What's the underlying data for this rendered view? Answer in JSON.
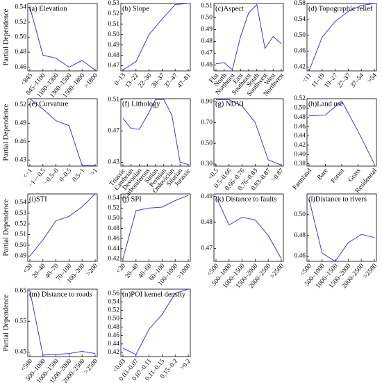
{
  "chart_data": [
    {
      "type": "line",
      "title": "(a) Elevation",
      "ylabel": "Partial Dependence",
      "categories": [
        "<845",
        "845–1100",
        "1100–1300",
        "1300–1500",
        "1500–1800",
        ">1800"
      ],
      "values": [
        0.54,
        0.476,
        0.472,
        0.46,
        0.469,
        0.456
      ],
      "color": "#3b3bd6",
      "ylim": [
        0.455,
        0.545
      ],
      "yticks": [
        0.46,
        0.48,
        {
          "value": 0.5,
          "label": "0.50"
        },
        0.52,
        0.54
      ]
    },
    {
      "type": "line",
      "title": "(b) Slope",
      "categories": [
        "0–13",
        "13–22",
        "22–30",
        "30–37",
        "37–47",
        "47–81"
      ],
      "values": [
        0.466,
        0.474,
        0.5,
        0.515,
        0.529,
        0.53
      ],
      "color": "#3b3bd6",
      "ylim": [
        0.465,
        0.53
      ],
      "yticks": [
        0.47,
        0.48,
        0.49,
        {
          "value": 0.5,
          "label": "0.50"
        },
        0.51,
        0.52,
        0.53
      ]
    },
    {
      "type": "line",
      "title": "(c)Aspect",
      "categories": [
        "Flat",
        "North",
        "Northeast",
        "East",
        "Southeast",
        "South",
        "Southwest",
        "West",
        "Northwest"
      ],
      "values": [
        0.461,
        0.462,
        0.456,
        0.484,
        0.504,
        0.511,
        0.474,
        0.484,
        0.478
      ],
      "color": "#3b3bd6",
      "ylim": [
        0.455,
        0.512
      ],
      "yticks": [
        0.46,
        0.47,
        0.48,
        0.49,
        {
          "value": 0.5,
          "label": "0.50"
        },
        0.51
      ]
    },
    {
      "type": "line",
      "title": "(d) Topographic relief",
      "categories": [
        "<11",
        "11–19",
        "19–27",
        "27–37",
        "37–54",
        ">54"
      ],
      "values": [
        0.41,
        0.495,
        0.535,
        0.56,
        0.575,
        0.58
      ],
      "color": "#3b3bd6",
      "ylim": [
        0.41,
        0.58
      ],
      "yticks": [
        0.42,
        0.46,
        {
          "value": 0.5,
          "label": "0.50"
        },
        0.54,
        0.58
      ]
    },
    {
      "type": "line",
      "title": "(e) Curvature",
      "ylabel": "Partial Dependence",
      "categories": [
        "<−1",
        "−1–−0.5",
        "−0.5–0",
        "0–0.5",
        "0.5–1",
        ">1"
      ],
      "values": [
        0.53,
        0.513,
        0.494,
        0.486,
        0.421,
        0.421
      ],
      "color": "#3b3bd6",
      "ylim": [
        0.42,
        0.53
      ],
      "yticks": [
        0.43,
        0.46,
        0.49,
        0.52
      ]
    },
    {
      "type": "line",
      "title": "(f) Lithology",
      "categories": [
        "Triassic",
        "Cambrian",
        "Devonian",
        "Carboniferous",
        "Sinian",
        "Permian",
        "Ordovician",
        "Silurian",
        "Jurassic"
      ],
      "values": [
        0.486,
        0.473,
        0.472,
        0.49,
        0.51,
        0.51,
        0.49,
        0.43,
        0.427
      ],
      "color": "#3b3bd6",
      "ylim": [
        0.425,
        0.511
      ],
      "yticks": [
        0.43,
        0.47,
        0.51
      ]
    },
    {
      "type": "line",
      "title": "(g) NDVI",
      "categories": [
        "<0.5",
        "0.5–0.66",
        "0.66–0.76",
        "0.76–0.83",
        "0.83–0.87",
        ">0.87"
      ],
      "values": [
        0.92,
        0.92,
        0.86,
        0.7,
        0.34,
        0.29
      ],
      "color": "#3b3bd6",
      "ylim": [
        0.28,
        0.93
      ],
      "yticks": [
        {
          "value": 0.3,
          "label": "0.30"
        },
        {
          "value": 0.5,
          "label": "0.50"
        },
        {
          "value": 0.7,
          "label": "0.70"
        },
        {
          "value": 0.9,
          "label": "0.90"
        }
      ]
    },
    {
      "type": "line",
      "title": "(h)Land use",
      "categories": [
        "Farmland",
        "Bare",
        "Forest",
        "Grass",
        "Residential"
      ],
      "values": [
        0.483,
        0.485,
        0.515,
        0.45,
        0.38
      ],
      "color": "#3b3bd6",
      "ylim": [
        0.375,
        0.52
      ],
      "yticks": [
        0.38,
        {
          "value": 0.4,
          "label": "0.40"
        },
        0.42,
        0.44,
        0.46,
        0.48,
        {
          "value": 0.5,
          "label": "0.50"
        },
        0.52
      ]
    },
    {
      "type": "line",
      "title": "(i)STI",
      "ylabel": "Partial Dependence",
      "categories": [
        "<20",
        "20–40",
        "40–70",
        "70–100",
        "100–200",
        ">200"
      ],
      "values": [
        0.49,
        0.505,
        0.523,
        0.527,
        0.536,
        0.548
      ],
      "color": "#3b3bd6",
      "ylim": [
        0.485,
        0.548
      ],
      "yticks": [
        0.49,
        {
          "value": 0.5,
          "label": "0.50"
        },
        0.51,
        0.52,
        0.53,
        0.54
      ]
    },
    {
      "type": "line",
      "title": "(j) SPI",
      "categories": [
        "<20",
        "20–40",
        "40–60",
        "60–100",
        "100–1000",
        ">1000"
      ],
      "values": [
        0.42,
        0.515,
        0.52,
        0.522,
        0.535,
        0.545
      ],
      "color": "#3b3bd6",
      "ylim": [
        0.415,
        0.548
      ],
      "yticks": [
        0.42,
        0.44,
        0.46,
        0.48,
        {
          "value": 0.5,
          "label": "0.50"
        },
        0.52,
        0.54
      ]
    },
    {
      "type": "line",
      "title": "(k) Distance to faults",
      "categories": [
        "<500",
        "500–1000",
        "1000–1500",
        "1500–2000",
        "2000–2500",
        ">2500"
      ],
      "values": [
        0.49,
        0.479,
        0.482,
        0.481,
        0.475,
        0.466
      ],
      "color": "#3b3bd6",
      "ylim": [
        0.465,
        0.491
      ],
      "yticks": [
        0.47,
        0.48,
        0.49
      ]
    },
    {
      "type": "line",
      "title": "(l)Distance to rivers",
      "categories": [
        "<500",
        "500–1000",
        "1000–1500",
        "1500–2000",
        "2000–2500",
        ">2500"
      ],
      "values": [
        0.515,
        0.463,
        0.455,
        0.473,
        0.481,
        0.478
      ],
      "color": "#3b3bd6",
      "ylim": [
        0.455,
        0.52
      ],
      "yticks": [
        0.46,
        0.48,
        {
          "value": 0.5,
          "label": "0.50"
        }
      ]
    },
    {
      "type": "line",
      "title": "(m) Distance to roads",
      "ylabel": "Partial Dependence",
      "categories": [
        "<500",
        "500–1000",
        "1000–1500",
        "1500–2000",
        "2000–2500",
        ">2500"
      ],
      "values": [
        0.65,
        0.44,
        0.442,
        0.445,
        0.452,
        0.445
      ],
      "color": "#3b3bd6",
      "ylim": [
        0.435,
        0.655
      ],
      "yticks": [
        0.45,
        0.55,
        0.65
      ]
    },
    {
      "type": "line",
      "title": "(n)POI kernel density",
      "categories": [
        "<0.03",
        "0.03–0.07",
        "0.07–0.11",
        "0.11–0.15",
        "0.15–0.2",
        ">0.2"
      ],
      "values": [
        0.43,
        0.415,
        0.475,
        0.51,
        0.56,
        0.57
      ],
      "color": "#3b3bd6",
      "ylim": [
        0.41,
        0.57
      ],
      "yticks": [
        0.42,
        0.44,
        0.46,
        0.48,
        {
          "value": 0.5,
          "label": "0.50"
        },
        0.52,
        0.54,
        0.56
      ]
    }
  ]
}
